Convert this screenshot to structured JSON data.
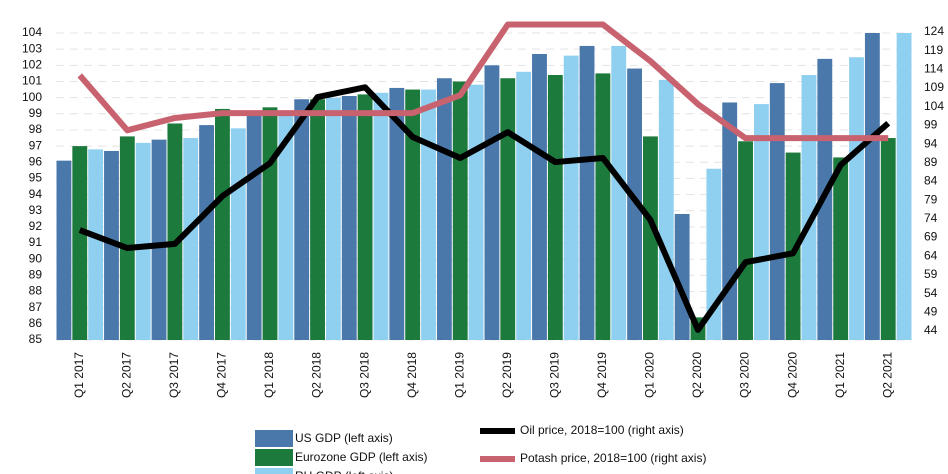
{
  "chart_data": {
    "type": "combo",
    "categories": [
      "Q1 2017",
      "Q2 2017",
      "Q3 2017",
      "Q4 2017",
      "Q1 2018",
      "Q2 2018",
      "Q3 2018",
      "Q4 2018",
      "Q1 2019",
      "Q2 2019",
      "Q3 2019",
      "Q4 2019",
      "Q1 2020",
      "Q2 2020",
      "Q3 2020",
      "Q4 2020",
      "Q1 2021",
      "Q2 2021"
    ],
    "series": [
      {
        "name": "US GDP (left axis)",
        "type": "bar",
        "color": "#4a78ab",
        "values": [
          96.1,
          96.7,
          97.4,
          98.3,
          99.0,
          99.9,
          100.1,
          100.6,
          101.2,
          102.0,
          102.7,
          103.2,
          101.8,
          92.8,
          99.7,
          100.9,
          102.4,
          104.0
        ]
      },
      {
        "name": "Eurozone GDP (left axis)",
        "type": "bar",
        "color": "#1b7a3c",
        "values": [
          97.0,
          97.6,
          98.4,
          99.3,
          99.4,
          99.9,
          100.2,
          100.5,
          101.0,
          101.2,
          101.4,
          101.5,
          97.6,
          86.4,
          97.3,
          96.6,
          96.3,
          97.5
        ]
      },
      {
        "name": "RU GDP (left axis)",
        "type": "bar",
        "color": "#8fd0f0",
        "values": [
          96.8,
          97.2,
          97.5,
          98.1,
          99.1,
          100.0,
          100.3,
          100.5,
          100.8,
          101.6,
          102.6,
          103.2,
          101.1,
          95.6,
          99.6,
          101.4,
          102.5,
          104.0
        ]
      },
      {
        "name": "Oil price, 2018=100 (right axis)",
        "type": "line",
        "axis": "y2",
        "color": "#000000",
        "values": [
          71.0,
          66.2,
          67.3,
          80.1,
          88.9,
          106.6,
          109.2,
          95.9,
          90.3,
          97.2,
          89.2,
          90.3,
          73.7,
          44.3,
          62.4,
          64.8,
          88.4,
          99.6
        ]
      },
      {
        "name": "Potash price, 2018=100 (right axis)",
        "type": "line",
        "axis": "y2",
        "color": "#c9626f",
        "values": [
          112.4,
          97.7,
          101.0,
          102.3,
          102.3,
          102.3,
          102.3,
          102.3,
          107.1,
          126.0,
          126.0,
          126.0,
          116.2,
          104.7,
          95.6,
          95.6,
          95.6,
          95.6
        ]
      }
    ],
    "ylim": [
      85,
      104
    ],
    "yticks": [
      85,
      86,
      87,
      88,
      89,
      90,
      91,
      92,
      93,
      94,
      95,
      96,
      97,
      98,
      99,
      100,
      101,
      102,
      103,
      104
    ],
    "y2lim": [
      44,
      124
    ],
    "y2ticks": [
      44,
      49,
      54,
      59,
      64,
      69,
      74,
      79,
      84,
      89,
      94,
      99,
      104,
      109,
      114,
      119,
      124
    ],
    "grid": true
  }
}
